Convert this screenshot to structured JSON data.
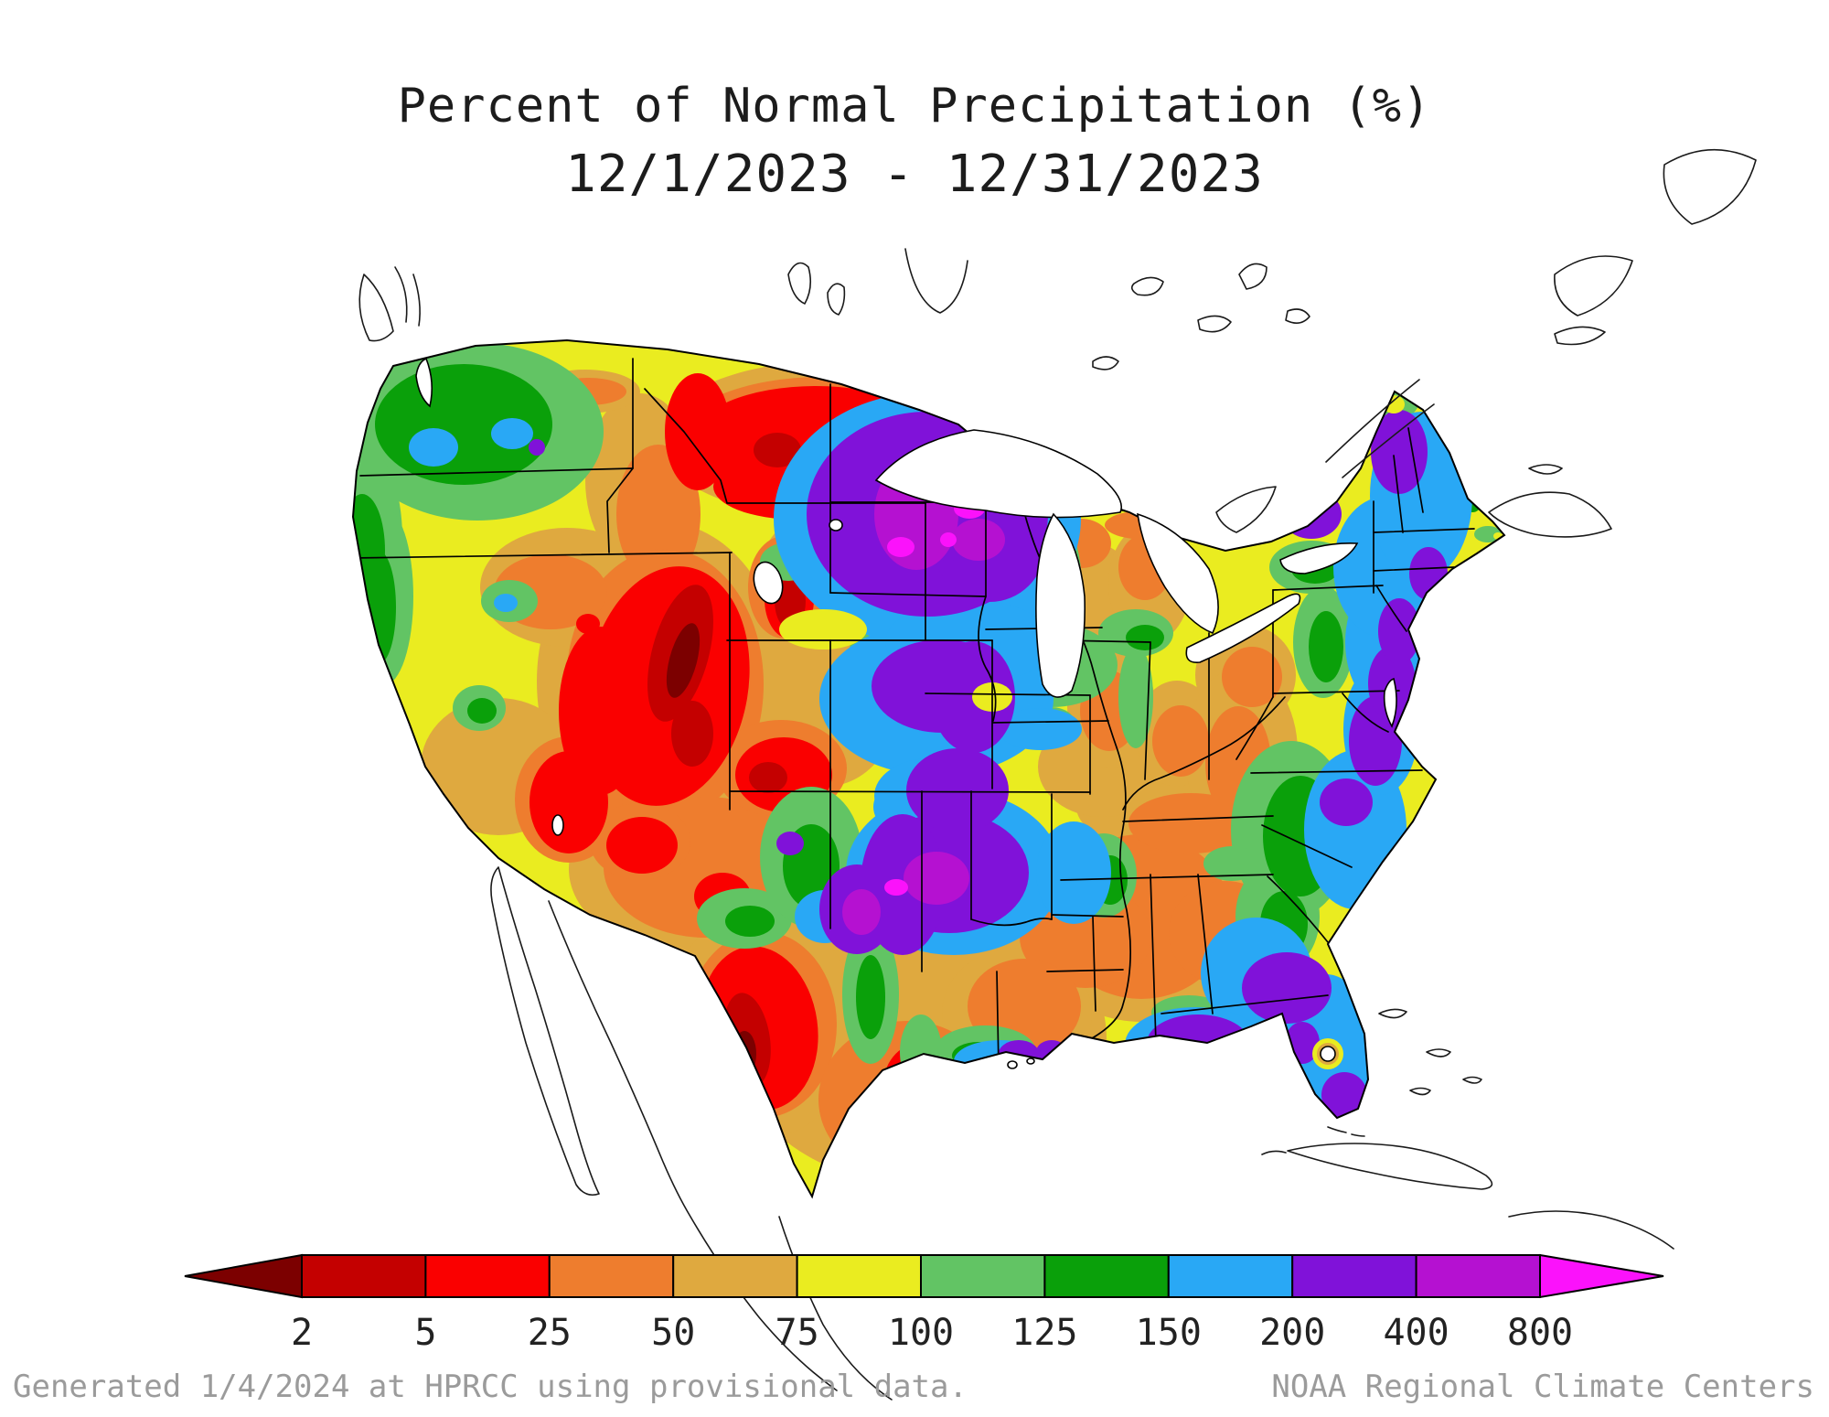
{
  "title": {
    "line1": "Percent of Normal Precipitation (%)",
    "line2": "12/1/2023 - 12/31/2023"
  },
  "legend": {
    "tick_labels": [
      "2",
      "5",
      "25",
      "50",
      "75",
      "100",
      "125",
      "150",
      "200",
      "400",
      "800"
    ],
    "thresholds_percent": [
      2,
      5,
      25,
      50,
      75,
      100,
      125,
      150,
      200,
      400,
      800
    ],
    "box_colors": [
      "#c40000",
      "#fa0000",
      "#ee7d2e",
      "#dfa93f",
      "#eaec20",
      "#62c464",
      "#0aa00a",
      "#29a8f5",
      "#8012d9",
      "#b511d1"
    ],
    "underflow_arrow_color": "#7c0000",
    "overflow_arrow_color": "#fb12fb",
    "outline_color": "#000000",
    "label_color": "#222222"
  },
  "footer": {
    "left": "Generated 1/4/2024 at HPRCC using provisional data.",
    "right": "NOAA Regional Climate Centers"
  }
}
